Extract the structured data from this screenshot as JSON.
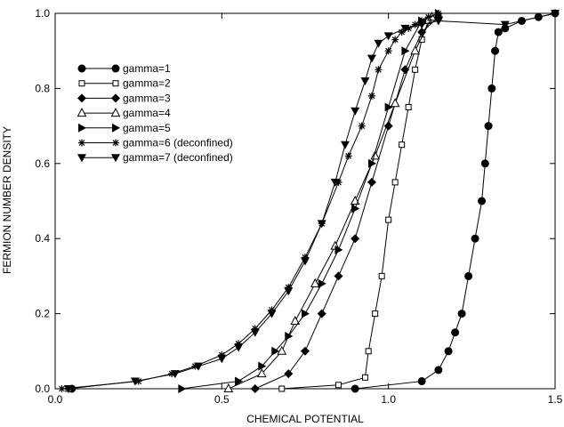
{
  "chart_data": {
    "type": "line",
    "title": "",
    "xlabel": "CHEMICAL POTENTIAL",
    "ylabel": "FERMION NUMBER DENSITY",
    "xlim": [
      0,
      1.5
    ],
    "ylim": [
      0,
      1.0
    ],
    "x_ticks": [
      0.0,
      0.5,
      1.0,
      1.5
    ],
    "x_tick_labels": [
      "0.0",
      "0.5",
      "1.0",
      "1.5"
    ],
    "y_ticks": [
      0.0,
      0.2,
      0.4,
      0.6,
      0.8,
      1.0
    ],
    "y_tick_labels": [
      "0.0",
      "0.2",
      "0.4",
      "0.6",
      "0.8",
      "1.0"
    ],
    "grid": false,
    "legend_position": "top-left",
    "series": [
      {
        "name": "gamma=1",
        "marker": "filled-circle",
        "x": [
          0.05,
          0.9,
          1.1,
          1.15,
          1.18,
          1.2,
          1.22,
          1.24,
          1.26,
          1.28,
          1.29,
          1.3,
          1.31,
          1.32,
          1.33,
          1.35,
          1.4,
          1.45,
          1.5
        ],
        "y": [
          0.0,
          0.0,
          0.02,
          0.05,
          0.1,
          0.15,
          0.2,
          0.3,
          0.4,
          0.5,
          0.6,
          0.7,
          0.8,
          0.9,
          0.95,
          0.96,
          0.98,
          0.99,
          1.0
        ]
      },
      {
        "name": "gamma=2",
        "marker": "open-square",
        "x": [
          0.04,
          0.68,
          0.85,
          0.93,
          0.94,
          0.96,
          0.98,
          1.0,
          1.02,
          1.04,
          1.06,
          1.08,
          1.1,
          1.12,
          1.15
        ],
        "y": [
          0.0,
          0.0,
          0.01,
          0.03,
          0.1,
          0.2,
          0.3,
          0.45,
          0.55,
          0.65,
          0.75,
          0.85,
          0.93,
          0.98,
          0.99
        ]
      },
      {
        "name": "gamma=3",
        "marker": "filled-diamond",
        "x": [
          0.6,
          0.7,
          0.75,
          0.8,
          0.85,
          0.9,
          0.95,
          1.0,
          1.05,
          1.1,
          1.15
        ],
        "y": [
          0.0,
          0.04,
          0.1,
          0.2,
          0.3,
          0.4,
          0.55,
          0.7,
          0.85,
          0.95,
          0.99
        ]
      },
      {
        "name": "gamma=4",
        "marker": "open-triangle",
        "x": [
          0.52,
          0.62,
          0.68,
          0.72,
          0.78,
          0.84,
          0.9,
          0.96,
          1.02,
          1.08,
          1.13
        ],
        "y": [
          0.0,
          0.04,
          0.1,
          0.18,
          0.28,
          0.38,
          0.5,
          0.62,
          0.76,
          0.9,
          0.99
        ]
      },
      {
        "name": "gamma=5",
        "marker": "filled-triangle-right",
        "x": [
          0.38,
          0.55,
          0.62,
          0.66,
          0.7,
          0.75,
          0.8,
          0.85,
          0.9,
          0.95,
          1.0,
          1.05,
          1.1,
          1.15
        ],
        "y": [
          0.0,
          0.02,
          0.06,
          0.1,
          0.14,
          0.2,
          0.28,
          0.37,
          0.48,
          0.6,
          0.75,
          0.9,
          0.98,
          1.0
        ]
      },
      {
        "name": "gamma=6 (deconfined)",
        "marker": "asterisk",
        "x": [
          0.02,
          0.25,
          0.35,
          0.42,
          0.5,
          0.55,
          0.6,
          0.65,
          0.7,
          0.75,
          0.8,
          0.85,
          0.88,
          0.92,
          0.95,
          0.97,
          1.0,
          1.02,
          1.04,
          1.06,
          1.08,
          1.1,
          1.12,
          1.15
        ],
        "y": [
          0.0,
          0.02,
          0.04,
          0.06,
          0.09,
          0.12,
          0.16,
          0.21,
          0.27,
          0.35,
          0.44,
          0.55,
          0.62,
          0.7,
          0.78,
          0.85,
          0.9,
          0.93,
          0.95,
          0.96,
          0.97,
          0.98,
          0.99,
          1.0
        ]
      },
      {
        "name": "gamma=7 (deconfined)",
        "marker": "filled-triangle-down",
        "x": [
          0.04,
          0.24,
          0.36,
          0.43,
          0.5,
          0.55,
          0.6,
          0.65,
          0.7,
          0.75,
          0.8,
          0.84,
          0.87,
          0.9,
          0.93,
          0.95,
          0.97,
          1.0,
          1.05,
          1.1,
          1.15,
          1.35,
          1.5
        ],
        "y": [
          0.0,
          0.02,
          0.04,
          0.06,
          0.08,
          0.11,
          0.15,
          0.2,
          0.26,
          0.34,
          0.44,
          0.55,
          0.65,
          0.74,
          0.82,
          0.88,
          0.92,
          0.94,
          0.96,
          0.97,
          0.98,
          0.97,
          1.0
        ]
      }
    ]
  }
}
